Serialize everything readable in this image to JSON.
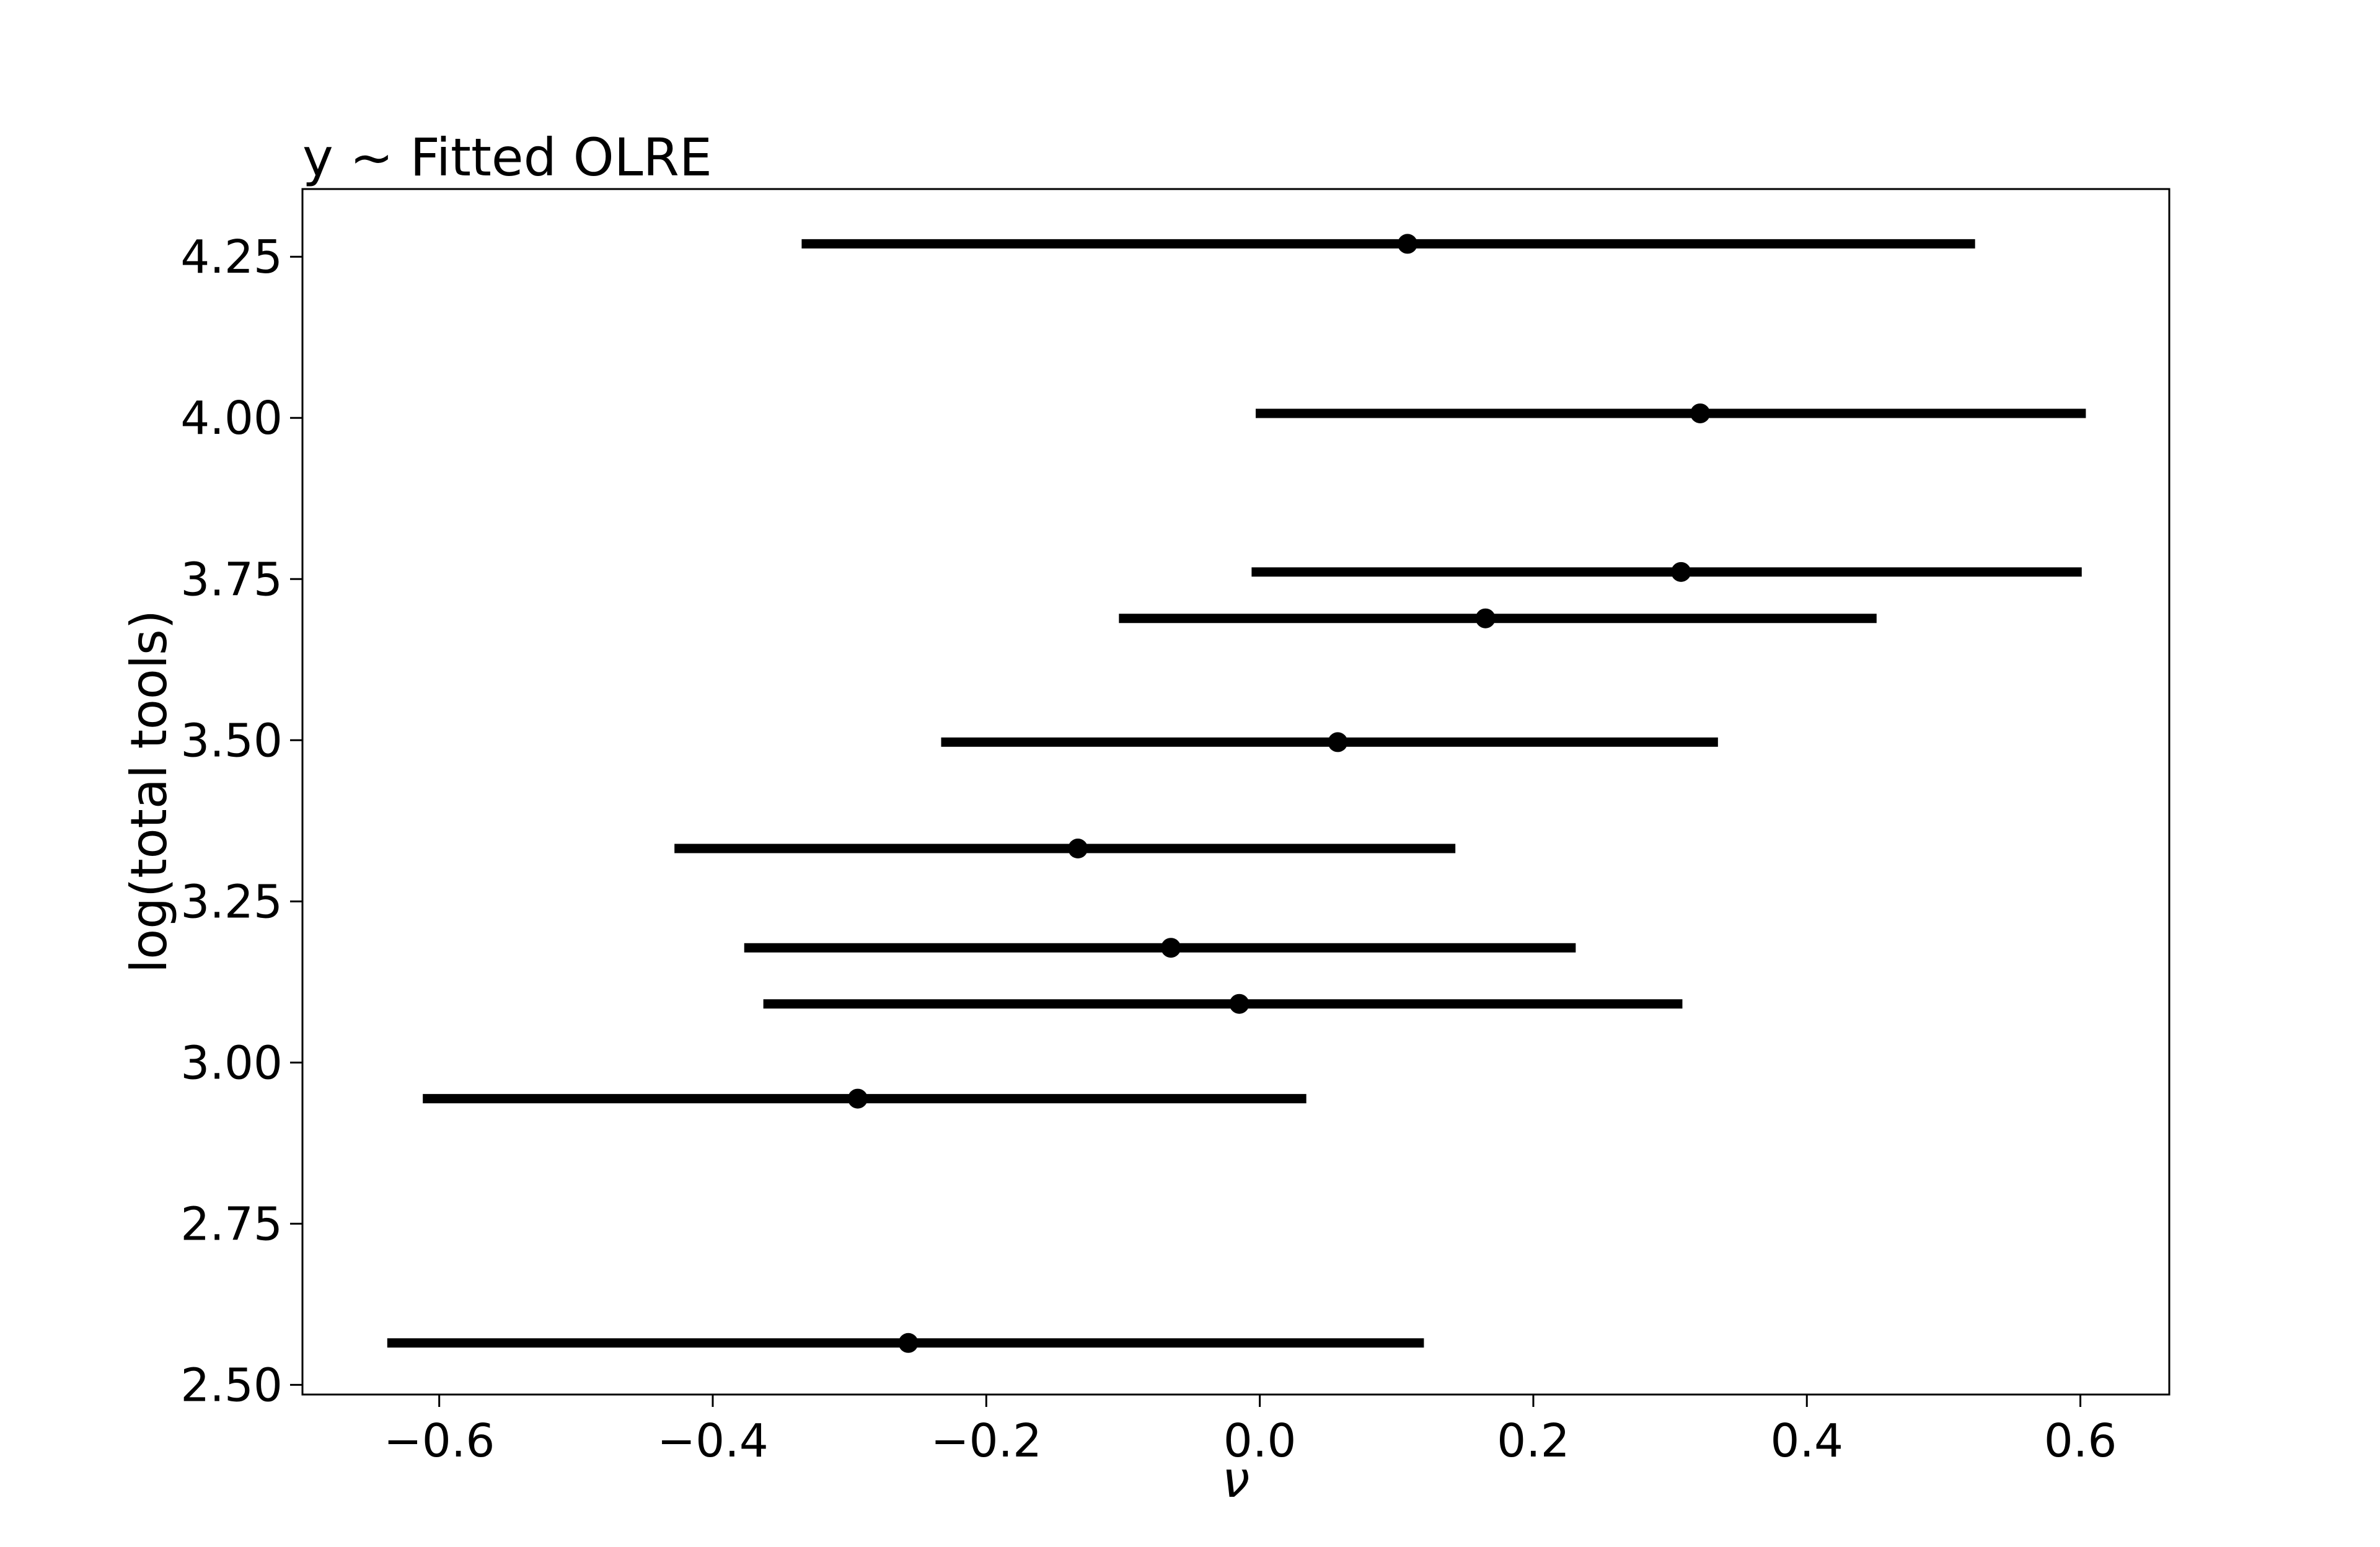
{
  "chart_data": {
    "type": "scatter",
    "title": "y ~ Fitted OLRE",
    "xlabel": "ν",
    "ylabel": "log(total tools)",
    "xlim": [
      -0.7,
      0.665
    ],
    "ylim": [
      2.485,
      4.355
    ],
    "xticks": [
      -0.6,
      -0.4,
      -0.2,
      0.0,
      0.2,
      0.4,
      0.6
    ],
    "xtick_labels": [
      "−0.6",
      "−0.4",
      "−0.2",
      "0.0",
      "0.2",
      "0.4",
      "0.6"
    ],
    "yticks": [
      2.5,
      2.75,
      3.0,
      3.25,
      3.5,
      3.75,
      4.0,
      4.25
    ],
    "ytick_labels": [
      "2.50",
      "2.75",
      "3.00",
      "3.25",
      "3.50",
      "3.75",
      "4.00",
      "4.25"
    ],
    "grid": false,
    "legend": "none",
    "series": [
      {
        "points": [
          {
            "y": 4.27,
            "x": 0.108,
            "lo": -0.335,
            "hi": 0.523
          },
          {
            "y": 4.007,
            "x": 0.322,
            "lo": -0.003,
            "hi": 0.604
          },
          {
            "y": 3.761,
            "x": 0.308,
            "lo": -0.006,
            "hi": 0.601
          },
          {
            "y": 3.689,
            "x": 0.165,
            "lo": -0.103,
            "hi": 0.451
          },
          {
            "y": 3.497,
            "x": 0.057,
            "lo": -0.233,
            "hi": 0.335
          },
          {
            "y": 3.332,
            "x": -0.133,
            "lo": -0.428,
            "hi": 0.143
          },
          {
            "y": 3.178,
            "x": -0.065,
            "lo": -0.377,
            "hi": 0.231
          },
          {
            "y": 3.091,
            "x": -0.015,
            "lo": -0.363,
            "hi": 0.309
          },
          {
            "y": 2.944,
            "x": -0.294,
            "lo": -0.612,
            "hi": 0.034
          },
          {
            "y": 2.565,
            "x": -0.257,
            "lo": -0.638,
            "hi": 0.12
          }
        ]
      }
    ]
  }
}
